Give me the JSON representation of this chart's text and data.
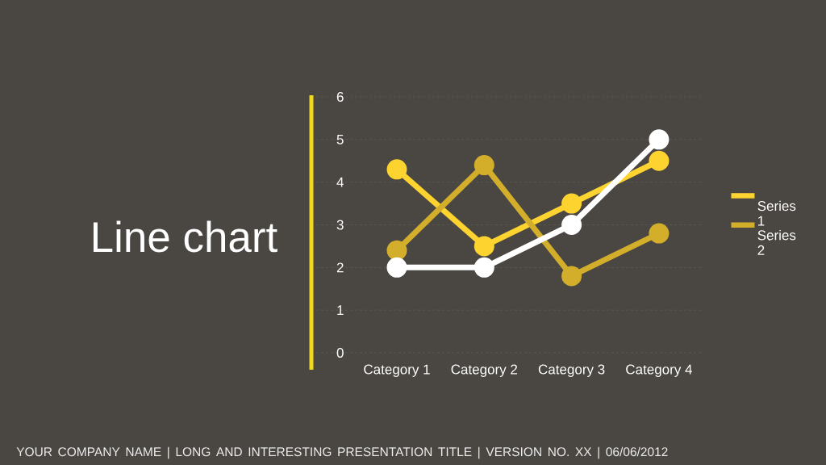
{
  "chart_data": {
    "type": "line",
    "title": "Line chart",
    "categories": [
      "Category 1",
      "Category 2",
      "Category 3",
      "Category 4"
    ],
    "series": [
      {
        "name": "Series 1",
        "color": "#fdd330",
        "values": [
          4.3,
          2.5,
          3.5,
          4.5
        ]
      },
      {
        "name": "Series 2",
        "color": "#d2ae2b",
        "values": [
          2.4,
          4.4,
          1.8,
          2.8
        ]
      },
      {
        "color": "#ffffff",
        "values": [
          2,
          2,
          3,
          5
        ]
      }
    ],
    "ylim": [
      0,
      6
    ],
    "yticks": [
      0,
      1,
      2,
      3,
      4,
      5,
      6
    ],
    "grid": "y",
    "legend": "right",
    "marker": "circle",
    "line_style": "solid",
    "annotations": [
      "YOUR COMPANY NAME | LONG AND INTERESTING PRESENTATION TITLE | VERSION NO. XX | 06/06/2012"
    ]
  }
}
